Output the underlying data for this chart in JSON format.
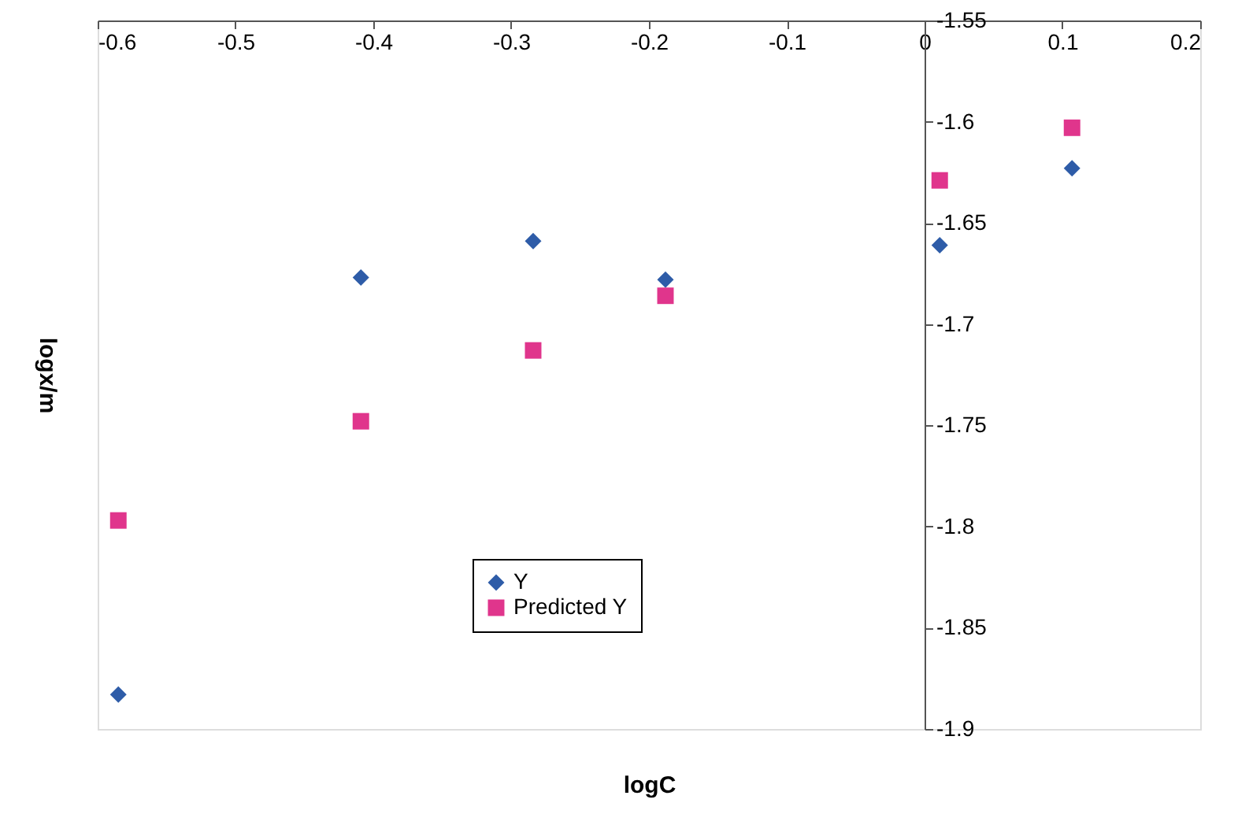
{
  "chart_data": {
    "type": "scatter",
    "xlabel": "logC",
    "ylabel": "logx/m",
    "series": [
      {
        "name": "Y",
        "color": "#2e5ca8",
        "marker": "diamond",
        "x": [
          -0.585,
          -0.409,
          -0.284,
          -0.188,
          0.011,
          0.107
        ],
        "values": [
          -1.883,
          -1.677,
          -1.659,
          -1.678,
          -1.661,
          -1.623
        ]
      },
      {
        "name": "Predicted Y",
        "color": "#e0358c",
        "marker": "square",
        "x": [
          -0.585,
          -0.409,
          -0.284,
          -0.188,
          0.011,
          0.107
        ],
        "values": [
          -1.797,
          -1.748,
          -1.713,
          -1.686,
          -1.629,
          -1.603
        ]
      }
    ],
    "xlim": [
      -0.6,
      0.2
    ],
    "xticks": [
      -0.6,
      -0.5,
      -0.4,
      -0.3,
      -0.2,
      -0.1,
      0,
      0.1,
      0.2
    ],
    "ylim": [
      -1.9,
      -1.55
    ],
    "yticks": [
      -1.9,
      -1.85,
      -1.8,
      -1.75,
      -1.7,
      -1.65,
      -1.6,
      -1.55
    ],
    "grid": false,
    "legend": "bottom"
  }
}
